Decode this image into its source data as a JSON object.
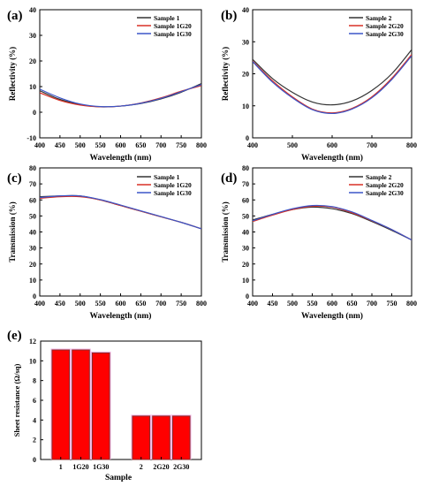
{
  "chart_data": [
    {
      "panel": "(a)",
      "type": "line",
      "xlabel": "Wavelength (nm)",
      "ylabel": "Reflectivity (%)",
      "xlim": [
        400,
        800
      ],
      "ylim": [
        -10,
        40
      ],
      "xticks": [
        400,
        450,
        500,
        550,
        600,
        650,
        700,
        750,
        800
      ],
      "yticks": [
        -10,
        0,
        10,
        20,
        30,
        40
      ],
      "legend_position": "top-right",
      "x": [
        400,
        450,
        500,
        550,
        600,
        650,
        700,
        750,
        800
      ],
      "series": [
        {
          "name": "Sample 1",
          "color": "#333333",
          "values": [
            8.4,
            5.0,
            3.0,
            2.1,
            2.4,
            3.4,
            5.2,
            7.8,
            11.2
          ]
        },
        {
          "name": "Sample 1G20",
          "color": "#d93025",
          "values": [
            7.6,
            4.6,
            2.8,
            2.1,
            2.4,
            3.6,
            5.6,
            8.2,
            10.4
          ]
        },
        {
          "name": "Sample 1G30",
          "color": "#3b55c8",
          "values": [
            9.0,
            5.6,
            3.2,
            2.2,
            2.4,
            3.5,
            5.4,
            8.0,
            10.8
          ]
        }
      ]
    },
    {
      "panel": "(b)",
      "type": "line",
      "xlabel": "Wavelength (nm)",
      "ylabel": "Reflectivity (%)",
      "xlim": [
        400,
        800
      ],
      "ylim": [
        0,
        40
      ],
      "xticks": [
        400,
        500,
        600,
        700,
        800
      ],
      "yticks": [
        0,
        10,
        20,
        30,
        40
      ],
      "legend_position": "top-right",
      "x": [
        400,
        450,
        500,
        550,
        600,
        650,
        700,
        750,
        800
      ],
      "series": [
        {
          "name": "Sample 2",
          "color": "#333333",
          "values": [
            24.5,
            18.5,
            14.2,
            11.2,
            10.3,
            11.5,
            14.8,
            20.0,
            27.5
          ]
        },
        {
          "name": "Sample 2G20",
          "color": "#d93025",
          "values": [
            24.0,
            17.8,
            12.8,
            9.0,
            7.8,
            9.2,
            12.8,
            18.6,
            26.0
          ]
        },
        {
          "name": "Sample 2G30",
          "color": "#3b55c8",
          "values": [
            23.8,
            17.4,
            12.5,
            8.8,
            7.6,
            9.0,
            12.5,
            18.2,
            25.6
          ]
        }
      ]
    },
    {
      "panel": "(c)",
      "type": "line",
      "xlabel": "Wavelength (nm)",
      "ylabel": "Transmission (%)",
      "xlim": [
        400,
        800
      ],
      "ylim": [
        0,
        80
      ],
      "xticks": [
        400,
        450,
        500,
        550,
        600,
        650,
        700,
        750,
        800
      ],
      "yticks": [
        0,
        10,
        20,
        30,
        40,
        50,
        60,
        70,
        80
      ],
      "legend_position": "top-right",
      "x": [
        400,
        450,
        500,
        550,
        600,
        650,
        700,
        750,
        800
      ],
      "series": [
        {
          "name": "Sample 1",
          "color": "#333333",
          "values": [
            62.0,
            62.5,
            62.5,
            60.0,
            56.5,
            53.0,
            49.5,
            46.0,
            42.0
          ]
        },
        {
          "name": "Sample 1G20",
          "color": "#d93025",
          "values": [
            61.0,
            62.0,
            62.0,
            60.0,
            56.5,
            53.0,
            49.5,
            46.0,
            42.0
          ]
        },
        {
          "name": "Sample 1G30",
          "color": "#3b55c8",
          "values": [
            61.5,
            62.5,
            62.5,
            60.2,
            56.8,
            53.2,
            49.6,
            46.0,
            42.0
          ]
        }
      ]
    },
    {
      "panel": "(d)",
      "type": "line",
      "xlabel": "Wavelength (nm)",
      "ylabel": "Transmission (%)",
      "xlim": [
        400,
        800
      ],
      "ylim": [
        0,
        80
      ],
      "xticks": [
        400,
        450,
        500,
        550,
        600,
        650,
        700,
        750,
        800
      ],
      "yticks": [
        0,
        10,
        20,
        30,
        40,
        50,
        60,
        70,
        80
      ],
      "legend_position": "top-right",
      "x": [
        400,
        450,
        500,
        550,
        600,
        650,
        700,
        750,
        800
      ],
      "series": [
        {
          "name": "Sample 2",
          "color": "#333333",
          "values": [
            47.5,
            51.0,
            54.0,
            55.5,
            54.5,
            51.5,
            46.5,
            41.0,
            35.0
          ]
        },
        {
          "name": "Sample 2G20",
          "color": "#d93025",
          "values": [
            46.5,
            50.5,
            54.0,
            56.0,
            55.5,
            52.0,
            47.0,
            41.5,
            35.0
          ]
        },
        {
          "name": "Sample 2G30",
          "color": "#3b55c8",
          "values": [
            47.0,
            51.0,
            54.5,
            56.5,
            55.8,
            52.5,
            47.2,
            41.5,
            35.0
          ]
        }
      ]
    },
    {
      "panel": "(e)",
      "type": "bar",
      "xlabel": "Sample",
      "ylabel": "Sheet resistance (Ω/sq)",
      "ylim": [
        0,
        12
      ],
      "yticks": [
        0,
        2,
        4,
        6,
        8,
        10,
        12
      ],
      "categories": [
        "1",
        "1G20",
        "1G30",
        "2",
        "2G20",
        "2G30"
      ],
      "values": [
        11.1,
        11.1,
        10.8,
        4.4,
        4.4,
        4.4
      ],
      "bar_color": "#ff0000",
      "bar_outline_color": "#8b2a2a",
      "bar_glow_color": "#f0b8e6"
    }
  ]
}
